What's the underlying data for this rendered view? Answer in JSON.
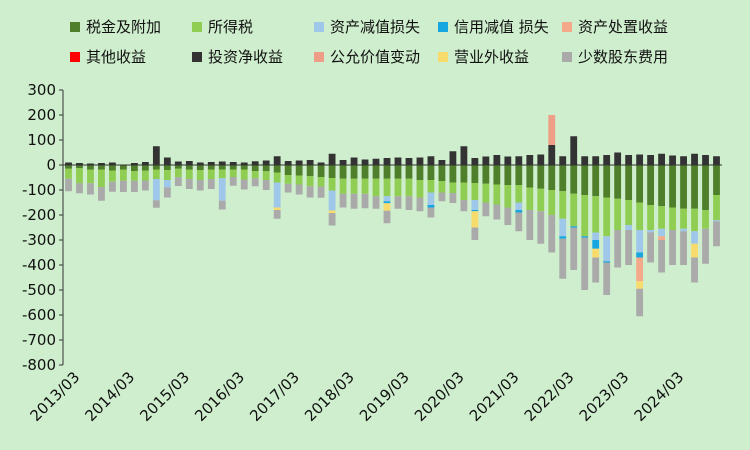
{
  "chart_data": {
    "type": "bar",
    "stacked": true,
    "title": "",
    "xlabel": "",
    "ylabel": "",
    "ylim": [
      -800,
      300
    ],
    "yticks": [
      300,
      200,
      100,
      0,
      -100,
      -200,
      -300,
      -400,
      -500,
      -600,
      -700,
      -800
    ],
    "xtick_labels": [
      "2013/03",
      "2014/03",
      "2015/03",
      "2016/03",
      "2017/03",
      "2018/03",
      "2019/03",
      "2020/03",
      "2021/03",
      "2022/03",
      "2023/03",
      "2024/03"
    ],
    "legend": [
      "税金及附加",
      "所得税",
      "资产减值损失",
      "信用减值 损失",
      "资产处置收益",
      "其他收益",
      "投资净收益",
      "公允价值变动",
      "营业外收益",
      "少数股东费用"
    ],
    "colors": [
      "#4f7f2a",
      "#8fce52",
      "#9fc7ea",
      "#16a7e0",
      "#f3a98a",
      "#ff0000",
      "#333333",
      "#ee9e86",
      "#f7dc6d",
      "#aaaaaa"
    ],
    "series": [
      {
        "name": "税金及附加",
        "values": [
          -15,
          -13,
          -18,
          -18,
          -22,
          -18,
          -25,
          -22,
          -18,
          -20,
          -15,
          -18,
          -20,
          -18,
          -18,
          -18,
          -18,
          -25,
          -25,
          -30,
          -40,
          -42,
          -45,
          -48,
          -52,
          -55,
          -55,
          -55,
          -55,
          -55,
          -55,
          -55,
          -60,
          -60,
          -65,
          -70,
          -70,
          -72,
          -75,
          -78,
          -80,
          -80,
          -90,
          -95,
          -100,
          -105,
          -115,
          -120,
          -125,
          -130,
          -135,
          -140,
          -150,
          -160,
          -165,
          -170,
          -175,
          -175,
          -180,
          -120
        ]
      },
      {
        "name": "所得税",
        "values": [
          -40,
          -60,
          -55,
          -70,
          -45,
          -45,
          -38,
          -40,
          -38,
          -40,
          -34,
          -38,
          -40,
          -38,
          -35,
          -30,
          -40,
          -28,
          -35,
          -40,
          -35,
          -36,
          -40,
          -38,
          -50,
          -60,
          -60,
          -60,
          -70,
          -70,
          -70,
          -70,
          -70,
          -50,
          -45,
          -42,
          -70,
          -68,
          -75,
          -80,
          -90,
          -70,
          -90,
          -90,
          -100,
          -110,
          -130,
          -165,
          -145,
          -155,
          -125,
          -100,
          -110,
          -100,
          -90,
          -90,
          -80,
          -90,
          -75,
          -100
        ]
      },
      {
        "name": "资产减值损失",
        "values": [
          0,
          0,
          0,
          0,
          0,
          0,
          0,
          0,
          -85,
          -30,
          0,
          0,
          0,
          0,
          -90,
          0,
          0,
          0,
          0,
          -100,
          0,
          0,
          0,
          0,
          -80,
          0,
          0,
          0,
          0,
          -20,
          0,
          0,
          0,
          -50,
          0,
          0,
          0,
          -40,
          0,
          0,
          0,
          -30,
          0,
          0,
          0,
          -70,
          0,
          0,
          -30,
          -100,
          0,
          -20,
          -90,
          -10,
          -30,
          0,
          -10,
          -50,
          0,
          -5
        ]
      },
      {
        "name": "信用减值 损失",
        "values": [
          0,
          0,
          0,
          0,
          0,
          0,
          0,
          0,
          0,
          0,
          0,
          0,
          0,
          0,
          0,
          0,
          0,
          0,
          0,
          0,
          0,
          0,
          0,
          0,
          0,
          0,
          0,
          0,
          0,
          -8,
          0,
          0,
          0,
          -10,
          0,
          0,
          0,
          -5,
          0,
          0,
          0,
          -10,
          0,
          0,
          0,
          -10,
          -5,
          -5,
          -35,
          -5,
          0,
          0,
          -20,
          0,
          0,
          0,
          0,
          0,
          0,
          0
        ]
      },
      {
        "name": "资产处置收益",
        "values": [
          0,
          0,
          0,
          0,
          0,
          0,
          0,
          0,
          0,
          0,
          0,
          0,
          0,
          0,
          0,
          0,
          0,
          0,
          0,
          0,
          0,
          0,
          0,
          0,
          0,
          0,
          0,
          0,
          0,
          0,
          0,
          0,
          0,
          0,
          0,
          0,
          0,
          0,
          0,
          0,
          0,
          0,
          0,
          0,
          0,
          0,
          0,
          0,
          0,
          0,
          0,
          0,
          -95,
          0,
          -15,
          0,
          0,
          0,
          0,
          0
        ]
      },
      {
        "name": "其他收益",
        "values": [
          0,
          0,
          0,
          0,
          0,
          0,
          0,
          0,
          0,
          0,
          0,
          0,
          0,
          0,
          0,
          0,
          0,
          0,
          0,
          0,
          0,
          0,
          0,
          0,
          0,
          0,
          0,
          0,
          0,
          0,
          0,
          0,
          0,
          0,
          0,
          0,
          0,
          0,
          0,
          0,
          0,
          0,
          0,
          0,
          0,
          0,
          0,
          0,
          0,
          0,
          0,
          0,
          0,
          0,
          0,
          0,
          0,
          0,
          0,
          0
        ]
      },
      {
        "name": "投资净收益",
        "values": [
          10,
          8,
          6,
          8,
          10,
          0,
          8,
          12,
          75,
          30,
          14,
          16,
          10,
          12,
          14,
          12,
          10,
          15,
          18,
          35,
          16,
          18,
          20,
          10,
          45,
          20,
          30,
          22,
          25,
          28,
          30,
          28,
          30,
          35,
          20,
          55,
          75,
          28,
          34,
          40,
          34,
          35,
          40,
          42,
          80,
          35,
          115,
          35,
          35,
          40,
          50,
          40,
          42,
          40,
          45,
          38,
          35,
          45,
          40,
          35
        ]
      },
      {
        "name": "公允价值变动",
        "values": [
          0,
          0,
          0,
          0,
          0,
          0,
          0,
          0,
          0,
          0,
          0,
          0,
          0,
          0,
          0,
          0,
          0,
          0,
          0,
          0,
          0,
          0,
          0,
          0,
          0,
          0,
          0,
          0,
          0,
          0,
          0,
          0,
          0,
          0,
          0,
          0,
          0,
          0,
          0,
          0,
          0,
          0,
          0,
          0,
          120,
          0,
          0,
          0,
          0,
          0,
          0,
          0,
          0,
          0,
          0,
          0,
          0,
          0,
          0,
          0
        ]
      },
      {
        "name": "营业外收益",
        "values": [
          0,
          0,
          0,
          0,
          0,
          0,
          0,
          0,
          0,
          0,
          0,
          0,
          0,
          0,
          0,
          0,
          0,
          0,
          0,
          -10,
          0,
          0,
          0,
          0,
          -10,
          0,
          0,
          0,
          0,
          -30,
          0,
          0,
          0,
          0,
          0,
          0,
          0,
          -65,
          0,
          0,
          0,
          0,
          0,
          0,
          0,
          0,
          0,
          0,
          -35,
          0,
          0,
          0,
          -30,
          0,
          0,
          0,
          0,
          -55,
          0,
          0
        ]
      },
      {
        "name": "少数股东费用",
        "values": [
          -50,
          -40,
          -45,
          -55,
          -40,
          -45,
          -45,
          -40,
          -30,
          -40,
          -35,
          -40,
          -42,
          -40,
          -35,
          -35,
          -40,
          -32,
          -40,
          -35,
          -35,
          -40,
          -45,
          -45,
          -50,
          -55,
          -60,
          -58,
          -50,
          -50,
          -50,
          -55,
          -55,
          -40,
          -35,
          -40,
          -45,
          -50,
          -55,
          -60,
          -70,
          -75,
          -120,
          -130,
          -150,
          -160,
          -170,
          -210,
          -100,
          -130,
          -150,
          -140,
          -110,
          -120,
          -130,
          -140,
          -135,
          -100,
          -140,
          -100
        ]
      }
    ]
  }
}
